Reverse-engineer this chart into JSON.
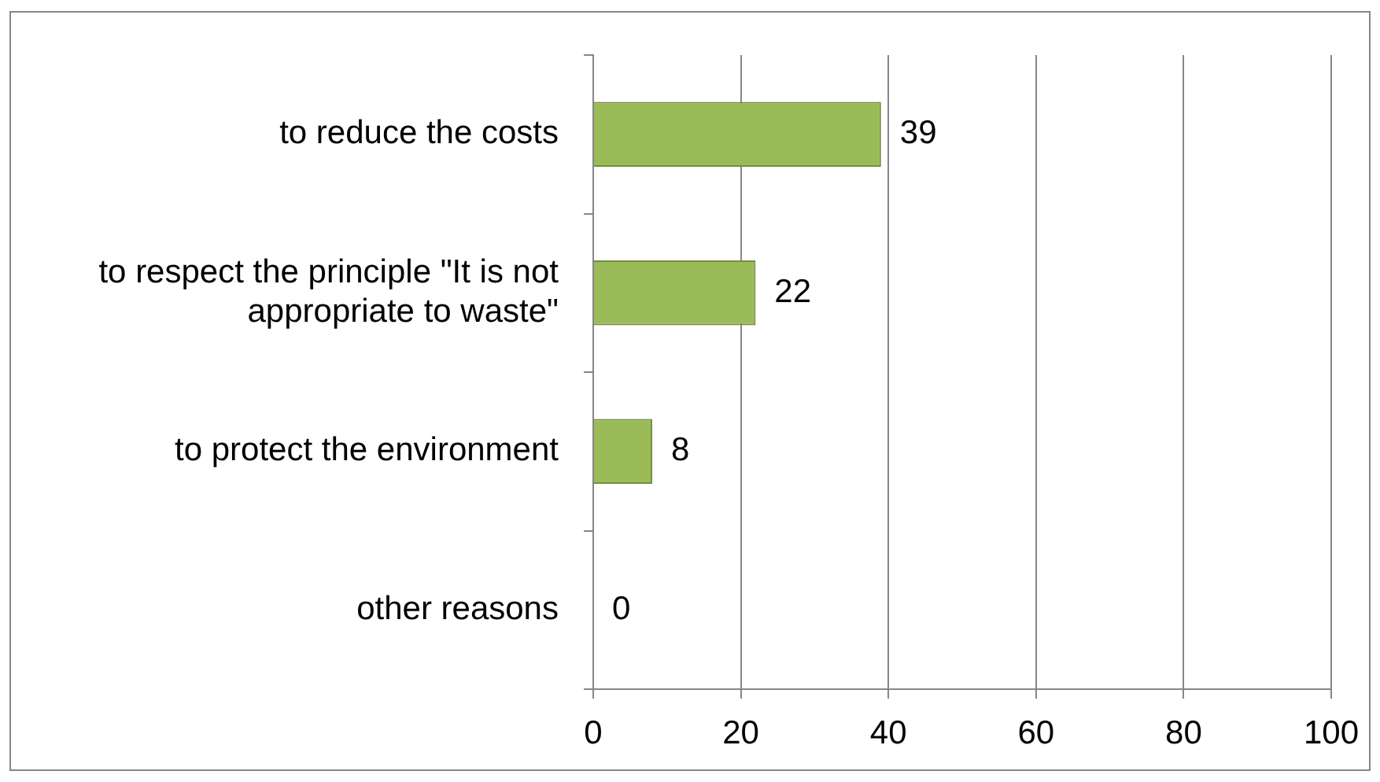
{
  "chart_data": {
    "type": "bar",
    "orientation": "horizontal",
    "categories": [
      "to reduce the costs",
      "to respect the principle \"It is not appropriate to waste\"",
      "to protect the environment",
      "other reasons"
    ],
    "values": [
      39,
      22,
      8,
      0
    ],
    "color": "#9bbb59",
    "xlim": [
      0,
      100
    ],
    "xticks": [
      0,
      20,
      40,
      60,
      80,
      100
    ],
    "grid": "x",
    "data_labels": true
  }
}
